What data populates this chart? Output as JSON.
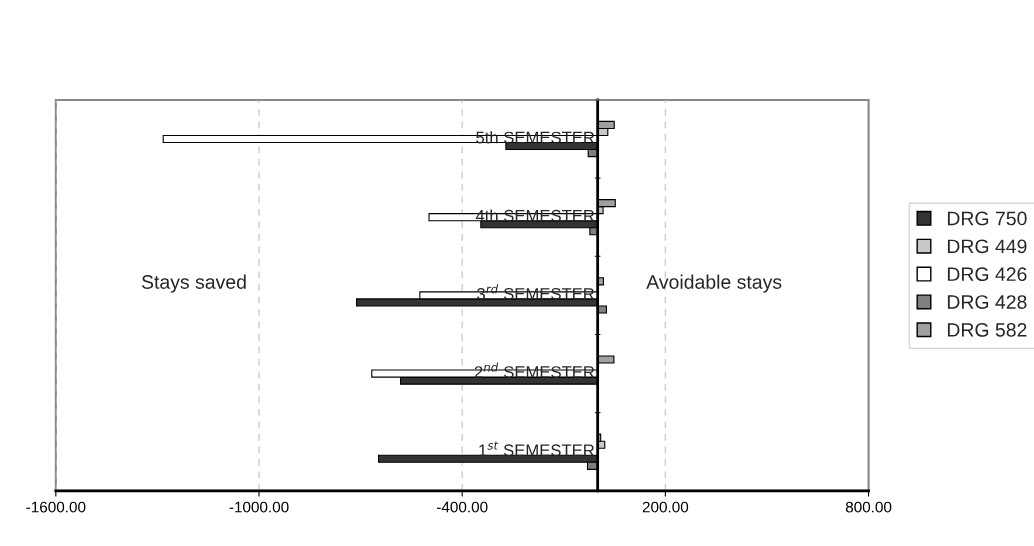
{
  "chart_data": {
    "type": "bar",
    "orientation": "horizontal",
    "categories": [
      "5th SEMESTER",
      "4th SEMESTER",
      "3$^{rd}$ SEMESTER",
      "2$^{nd}$ SEMESTER",
      "1$^{st}$ SEMESTER"
    ],
    "series": [
      {
        "name": "DRG 750",
        "color": "#333333",
        "values": [
          -271,
          -345,
          -712,
          -582,
          -647
        ]
      },
      {
        "name": "DRG 449",
        "color": "#c8c8c8",
        "values": [
          30,
          16,
          null,
          null,
          21
        ]
      },
      {
        "name": "DRG 426",
        "color": "#ffffff",
        "values": [
          -1283,
          -498,
          -525,
          -667,
          null
        ]
      },
      {
        "name": "DRG 428",
        "color": "#808080",
        "values": [
          -28,
          -23,
          26,
          null,
          -30
        ]
      },
      {
        "name": "DRG 582",
        "color": "#a0a0a0",
        "values": [
          49,
          52,
          17,
          48,
          9
        ]
      }
    ],
    "xlim": [
      -1600,
      800
    ],
    "xticks": [
      {
        "value": -1600,
        "label": "-1600.00"
      },
      {
        "value": -1000,
        "label": "-1000.00"
      },
      {
        "value": -400,
        "label": "-400.00"
      },
      {
        "value": 200,
        "label": "200.00"
      },
      {
        "value": 800,
        "label": "800.00"
      }
    ],
    "annotations": [
      "Stays saved",
      "Avoidable stays"
    ],
    "grid": "x",
    "legend": "right"
  }
}
